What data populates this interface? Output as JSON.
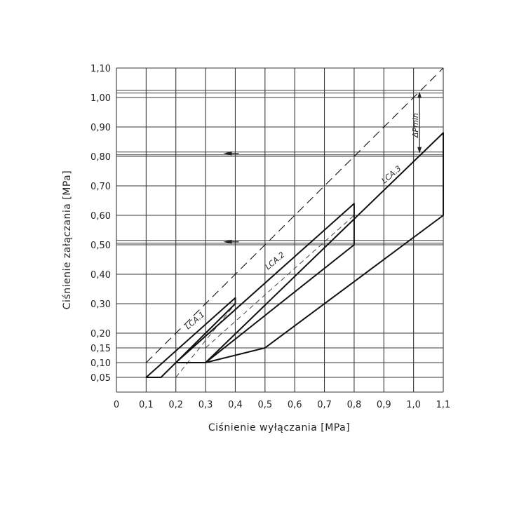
{
  "chart_data": {
    "type": "line",
    "xlabel": "Ciśnienie wyłączania [MPa]",
    "ylabel": "Ciśnienie załączania [MPa]",
    "xlim": [
      0,
      1.1
    ],
    "ylim": [
      0,
      1.1
    ],
    "grid": true,
    "x_ticks": [
      0,
      0.1,
      0.2,
      0.3,
      0.4,
      0.5,
      0.6,
      0.7,
      0.8,
      0.9,
      1.0,
      1.1
    ],
    "x_tick_labels": [
      "0",
      "0,1",
      "0,2",
      "0,3",
      "0,4",
      "0,5",
      "0,6",
      "0,7",
      "0,8",
      "0,9",
      "1,0",
      "1,1"
    ],
    "y_ticks": [
      0.05,
      0.1,
      0.15,
      0.2,
      0.3,
      0.4,
      0.5,
      0.6,
      0.7,
      0.8,
      0.9,
      1.0,
      1.1
    ],
    "y_tick_labels": [
      "0,05",
      "0,10",
      "0,15",
      "0,20",
      "0,30",
      "0,40",
      "0,50",
      "0,60",
      "0,70",
      "0,80",
      "0,90",
      "1,00",
      "1,10"
    ],
    "annotation": "ΔPmin",
    "series": [
      {
        "name": "LCA.1",
        "type": "region",
        "points": [
          [
            0.1,
            0.05
          ],
          [
            0.15,
            0.05
          ],
          [
            0.4,
            0.3
          ],
          [
            0.4,
            0.32
          ],
          [
            0.1,
            0.05
          ]
        ]
      },
      {
        "name": "LCA.2",
        "type": "region",
        "points": [
          [
            0.2,
            0.1
          ],
          [
            0.3,
            0.1
          ],
          [
            0.8,
            0.5
          ],
          [
            0.8,
            0.64
          ],
          [
            0.2,
            0.1
          ]
        ]
      },
      {
        "name": "LCA.3",
        "type": "region",
        "points": [
          [
            0.3,
            0.1
          ],
          [
            0.5,
            0.15
          ],
          [
            1.1,
            0.6
          ],
          [
            1.1,
            0.88
          ],
          [
            0.3,
            0.1
          ]
        ]
      },
      {
        "name": "",
        "type": "dashed",
        "points": [
          [
            0.1,
            0.1
          ],
          [
            1.1,
            1.1
          ]
        ]
      }
    ]
  }
}
